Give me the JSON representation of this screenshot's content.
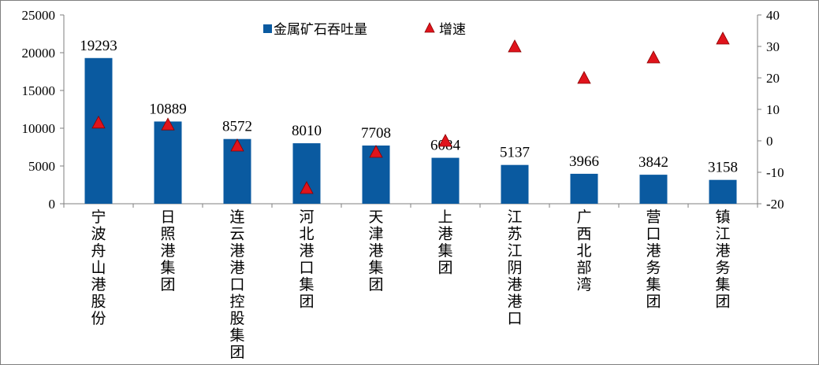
{
  "chart_data": {
    "type": "bar",
    "categories": [
      "宁波舟山港股份",
      "日照港集团",
      "连云港港口控股集团",
      "河北港口集团",
      "天津港集团",
      "上港集团",
      "江苏江阴港港口",
      "广西北部湾",
      "营口港务集团",
      "镇江港务集团"
    ],
    "series": [
      {
        "name": "金属矿石吞吐量",
        "type": "bar",
        "axis": "left",
        "color": "#0a5aa0",
        "values": [
          19293,
          10889,
          8572,
          8010,
          7708,
          6084,
          5137,
          3966,
          3842,
          3158
        ]
      },
      {
        "name": "增速",
        "type": "scatter",
        "axis": "right",
        "marker": "triangle",
        "color": "#e0141c",
        "values": [
          5.8,
          5.2,
          -1.5,
          -15,
          -3.5,
          0,
          30,
          20,
          26.5,
          32.5
        ]
      }
    ],
    "data_labels": [
      "19293",
      "10889",
      "8572",
      "8010",
      "7708",
      "6084",
      "5137",
      "3966",
      "3842",
      "3158"
    ],
    "y_left": {
      "min": 0,
      "max": 25000,
      "ticks": [
        "0",
        "5000",
        "10000",
        "15000",
        "20000",
        "25000"
      ]
    },
    "y_right": {
      "min": -20,
      "max": 40,
      "ticks": [
        "-20",
        "-10",
        "0",
        "10",
        "20",
        "30",
        "40"
      ]
    },
    "legend": [
      "金属矿石吞吐量",
      "增速"
    ],
    "legend_position": "top-center",
    "grid": false
  }
}
